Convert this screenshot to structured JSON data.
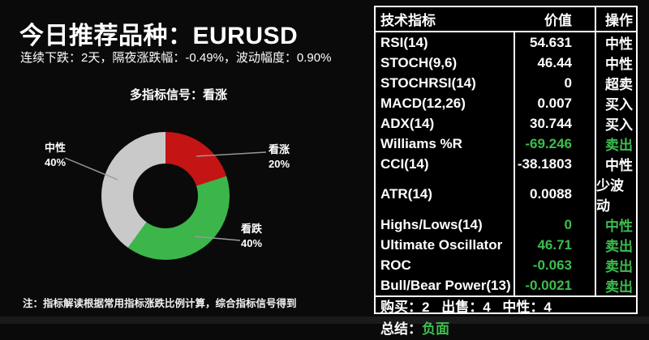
{
  "header": {
    "title": "今日推荐品种：EURUSD",
    "subtitle": "连续下跌：2天，隔夜涨跌幅：-0.49%，波动幅度：0.90%",
    "signal_label": "多指标信号：看涨"
  },
  "chart_data": {
    "type": "pie",
    "donut": true,
    "title": "多指标信号：看涨",
    "start_angle_deg": 0,
    "direction": "clockwise",
    "slices": [
      {
        "label": "看涨",
        "value": 20,
        "pct_label": "20%",
        "color": "#c41414"
      },
      {
        "label": "看跌",
        "value": 40,
        "pct_label": "40%",
        "color": "#3cb54a"
      },
      {
        "label": "中性",
        "value": 40,
        "pct_label": "40%",
        "color": "#c9c9c9"
      }
    ]
  },
  "table": {
    "headers": {
      "indicator": "技术指标",
      "value": "价值",
      "action": "操作"
    },
    "rows": [
      {
        "name": "RSI(14)",
        "value": "54.631",
        "action": "中性",
        "highlight": false
      },
      {
        "name": "STOCH(9,6)",
        "value": "46.44",
        "action": "中性",
        "highlight": false
      },
      {
        "name": "STOCHRSI(14)",
        "value": "0",
        "action": "超卖",
        "highlight": false
      },
      {
        "name": "MACD(12,26)",
        "value": "0.007",
        "action": "买入",
        "highlight": false
      },
      {
        "name": "ADX(14)",
        "value": "30.744",
        "action": "买入",
        "highlight": false
      },
      {
        "name": "Williams %R",
        "value": "-69.246",
        "action": "卖出",
        "highlight": true
      },
      {
        "name": "CCI(14)",
        "value": "-38.1803",
        "action": "中性",
        "highlight": false
      },
      {
        "name": "ATR(14)",
        "value": "0.0088",
        "action": "少波动",
        "highlight": false
      },
      {
        "name": "Highs/Lows(14)",
        "value": "0",
        "action": "中性",
        "highlight": true
      },
      {
        "name": "Ultimate Oscillator",
        "value": "46.71",
        "action": "卖出",
        "highlight": true
      },
      {
        "name": "ROC",
        "value": "-0.063",
        "action": "卖出",
        "highlight": true
      },
      {
        "name": "Bull/Bear Power(13)",
        "value": "-0.0021",
        "action": "卖出",
        "highlight": true
      }
    ],
    "summary": {
      "buy_label": "购买：",
      "buy_value": "2",
      "sell_label": "出售：",
      "sell_value": "4",
      "neutral_label": "中性：",
      "neutral_value": "4",
      "conclusion_label": "总结：",
      "conclusion_value": "负面"
    }
  },
  "footnote": "注：指标解读根据常用指标涨跌比例计算，综合指标信号得到",
  "colors": {
    "green_text": "#3dbd4e",
    "red_slice": "#c41414",
    "green_slice": "#3cb54a",
    "gray_slice": "#c9c9c9"
  }
}
